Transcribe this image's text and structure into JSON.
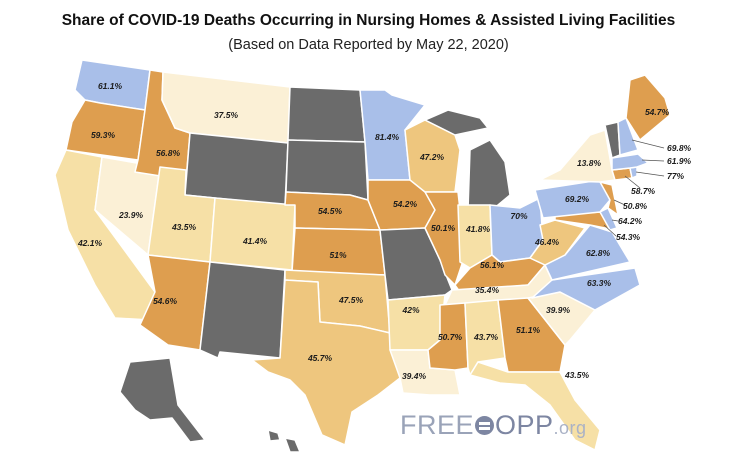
{
  "title": "Share of COVID-19 Deaths Occurring in Nursing Homes & Assisted Living Facilities",
  "subtitle": "(Based on Data Reported by May 22, 2020)",
  "logo": {
    "free": "FREE",
    "opp": "OPP",
    "org": ".org"
  },
  "colors": {
    "lowest": "#fbf0d6",
    "low": "#f6e0a6",
    "mid": "#eec67e",
    "high": "#de9e4f",
    "very_high": "#a9bfe9",
    "no_data": "#6b6b6b"
  },
  "states": {
    "WA": "61.1%",
    "OR": "59.3%",
    "CA": "42.1%",
    "NV": "23.9%",
    "ID": "56.8%",
    "MT": "37.5%",
    "WY": "",
    "UT": "43.5%",
    "AZ": "54.6%",
    "CO": "41.4%",
    "NM": "",
    "ND": "",
    "SD": "",
    "NE": "54.5%",
    "KS": "51%",
    "OK": "47.5%",
    "TX": "45.7%",
    "MN": "81.4%",
    "IA": "54.2%",
    "MO": "",
    "AR": "42%",
    "LA": "39.4%",
    "WI": "47.2%",
    "IL": "50.1%",
    "MI": "",
    "IN": "41.8%",
    "OH": "70%",
    "KY": "56.1%",
    "TN": "35.4%",
    "MS": "50.7%",
    "AL": "43.7%",
    "GA": "51.1%",
    "FL": "43.5%",
    "SC": "39.9%",
    "NC": "63.3%",
    "VA": "62.8%",
    "WV": "46.4%",
    "PA": "69.2%",
    "NY": "13.8%",
    "ME": "54.7%",
    "VT": "",
    "NH": "69.8%",
    "MA": "61.9%",
    "RI": "77%",
    "CT": "58.7%",
    "NJ": "50.8%",
    "DE": "64.2%",
    "MD": "54.3%",
    "AK": "",
    "HI": ""
  }
}
